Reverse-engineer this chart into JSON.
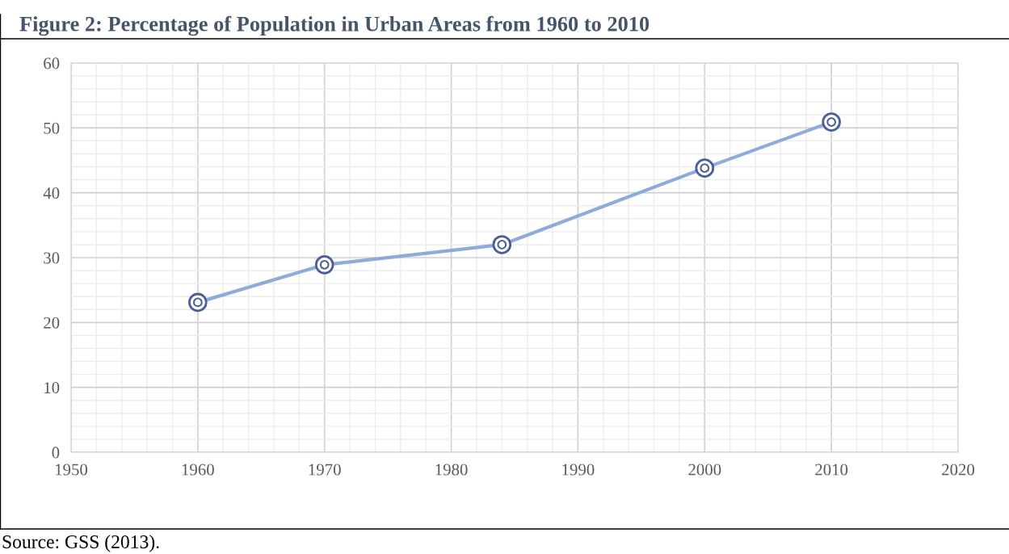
{
  "chart_data": {
    "type": "line",
    "title": "Figure 2: Percentage of Population in Urban Areas from 1960 to 2010",
    "x": [
      1960,
      1970,
      1984,
      2000,
      2010
    ],
    "series": [
      {
        "color": "#8faadc",
        "values": [
          23.1,
          28.9,
          32.0,
          43.8,
          50.9
        ]
      }
    ],
    "xlim": [
      1950,
      2020
    ],
    "xticks": [
      1950,
      1960,
      1970,
      1980,
      1990,
      2000,
      2010,
      2020
    ],
    "ylim": [
      0,
      60
    ],
    "yticks": [
      0,
      10,
      20,
      30,
      40,
      50,
      60
    ],
    "grid": true,
    "marker": "circle",
    "line_style": "solid",
    "annotations": [
      "Source: GSS (2013)."
    ]
  }
}
